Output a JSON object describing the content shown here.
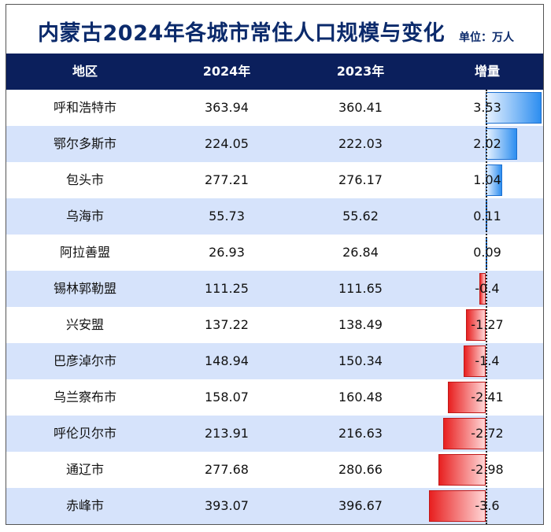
{
  "title": "内蒙古2024年各城市常住人口规模与变化",
  "unit": "单位：万人",
  "header": {
    "region": "地区",
    "y2024": "2024年",
    "y2023": "2023年",
    "change": "增量"
  },
  "chart_data": {
    "type": "table",
    "title": "内蒙古2024年各城市常住人口规模与变化",
    "unit": "单位：万人",
    "columns": [
      "地区",
      "2024年",
      "2023年",
      "增量"
    ],
    "rows": [
      {
        "region": "呼和浩特市",
        "y2024": "363.94",
        "y2023": "360.41",
        "change": "3.53"
      },
      {
        "region": "鄂尔多斯市",
        "y2024": "224.05",
        "y2023": "222.03",
        "change": "2.02"
      },
      {
        "region": "包头市",
        "y2024": "277.21",
        "y2023": "276.17",
        "change": "1.04"
      },
      {
        "region": "乌海市",
        "y2024": "55.73",
        "y2023": "55.62",
        "change": "0.11"
      },
      {
        "region": "阿拉善盟",
        "y2024": "26.93",
        "y2023": "26.84",
        "change": "0.09"
      },
      {
        "region": "锡林郭勒盟",
        "y2024": "111.25",
        "y2023": "111.65",
        "change": "-0.4"
      },
      {
        "region": "兴安盟",
        "y2024": "137.22",
        "y2023": "138.49",
        "change": "-1.27"
      },
      {
        "region": "巴彦淖尔市",
        "y2024": "148.94",
        "y2023": "150.34",
        "change": "-1.4"
      },
      {
        "region": "乌兰察布市",
        "y2024": "158.07",
        "y2023": "160.48",
        "change": "-2.41"
      },
      {
        "region": "呼伦贝尔市",
        "y2024": "213.91",
        "y2023": "216.63",
        "change": "-2.72"
      },
      {
        "region": "通辽市",
        "y2024": "277.68",
        "y2023": "280.66",
        "change": "-2.98"
      },
      {
        "region": "赤峰市",
        "y2024": "393.07",
        "y2023": "396.67",
        "change": "-3.6"
      }
    ],
    "colors": {
      "positive": "#2d8ef0",
      "negative": "#e82020",
      "header_bg": "#0b1f5c",
      "stripe": "#d6e3fb",
      "title": "#0b2a6b"
    }
  }
}
